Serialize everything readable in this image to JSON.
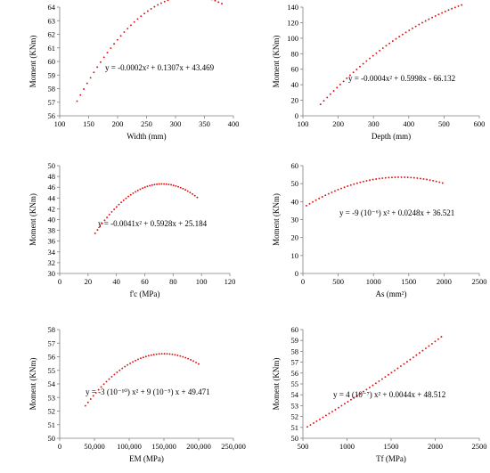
{
  "chart_data": [
    {
      "type": "scatter",
      "xlabel": "Width (mm)",
      "ylabel": "Moment (KNm)",
      "xlim": [
        100,
        400
      ],
      "ylim": [
        56,
        64
      ],
      "xticks": [
        "100",
        "150",
        "200",
        "250",
        "300",
        "350",
        "400"
      ],
      "yticks": [
        "56",
        "57",
        "58",
        "59",
        "60",
        "61",
        "62",
        "63",
        "64"
      ],
      "equation": "y = -0.0002x² + 0.1307x + 43.469",
      "series": [
        {
          "x_start": 130,
          "x_end": 380,
          "coeffs": [
            43.469,
            0.1307,
            -0.0002
          ]
        }
      ]
    },
    {
      "type": "scatter",
      "xlabel": "Depth (mm)",
      "ylabel": "Moment (KNm)",
      "xlim": [
        100,
        600
      ],
      "ylim": [
        0,
        140
      ],
      "xticks": [
        "100",
        "200",
        "300",
        "400",
        "500",
        "600"
      ],
      "yticks": [
        "0",
        "20",
        "40",
        "60",
        "80",
        "100",
        "120",
        "140"
      ],
      "equation": "y = -0.0004x² + 0.5998x - 66.132",
      "series": [
        {
          "x_start": 150,
          "x_end": 550,
          "coeffs": [
            -66.132,
            0.5998,
            -0.0004
          ]
        }
      ]
    },
    {
      "type": "scatter",
      "xlabel": "f'c (MPa)",
      "ylabel": "Moment (KNm)",
      "xlim": [
        0,
        120
      ],
      "ylim": [
        30,
        50
      ],
      "xticks": [
        "0",
        "20",
        "40",
        "60",
        "80",
        "100",
        "120"
      ],
      "yticks": [
        "30",
        "32",
        "34",
        "36",
        "38",
        "40",
        "42",
        "44",
        "46",
        "48",
        "50"
      ],
      "equation": "y = -0.0041x² + 0.5928x + 25.184",
      "series": [
        {
          "x_start": 25,
          "x_end": 97,
          "coeffs": [
            25.184,
            0.5928,
            -0.0041
          ]
        }
      ]
    },
    {
      "type": "scatter",
      "xlabel": "As (mm²)",
      "ylabel": "Moment (KNm)",
      "xlim": [
        0,
        2500
      ],
      "ylim": [
        0,
        60
      ],
      "xticks": [
        "0",
        "500",
        "1000",
        "1500",
        "2000",
        "2500"
      ],
      "yticks": [
        "0",
        "10",
        "20",
        "30",
        "40",
        "50",
        "60"
      ],
      "equation": "y = -9 (10⁻⁶) x² + 0.0248x + 36.521",
      "series": [
        {
          "x_start": 50,
          "x_end": 1980,
          "coeffs": [
            36.521,
            0.0248,
            -9e-06
          ]
        }
      ]
    },
    {
      "type": "scatter",
      "xlabel": "EM (MPa)",
      "ylabel": "Moment (KNm)",
      "xlim": [
        0,
        250000
      ],
      "ylim": [
        50,
        58
      ],
      "xticks": [
        "0",
        "50,000",
        "100,000",
        "150,000",
        "200,000",
        "250,000"
      ],
      "yticks": [
        "50",
        "51",
        "52",
        "53",
        "54",
        "55",
        "56",
        "57",
        "58"
      ],
      "equation": "y = -3 (10⁻¹⁰) x² + 9 (10⁻⁵) x + 49.471",
      "series": [
        {
          "x_start": 37000,
          "x_end": 200000,
          "coeffs": [
            49.471,
            9e-05,
            -3e-10
          ]
        }
      ]
    },
    {
      "type": "scatter",
      "xlabel": "Tf (MPa)",
      "ylabel": "Moment (KNm)",
      "xlim": [
        500,
        2500
      ],
      "ylim": [
        50,
        60
      ],
      "xticks": [
        "500",
        "1000",
        "1500",
        "2000",
        "2500"
      ],
      "yticks": [
        "50",
        "51",
        "52",
        "53",
        "54",
        "55",
        "56",
        "57",
        "58",
        "59",
        "60"
      ],
      "equation": "y = 4 (10⁻⁷) x² + 0.0044x + 48.512",
      "series": [
        {
          "x_start": 550,
          "x_end": 2070,
          "coeffs": [
            48.512,
            0.0044,
            4e-07
          ]
        }
      ]
    }
  ],
  "colors": {
    "points": "#e01010",
    "axis": "#7f7f7f",
    "text": "#000000"
  }
}
